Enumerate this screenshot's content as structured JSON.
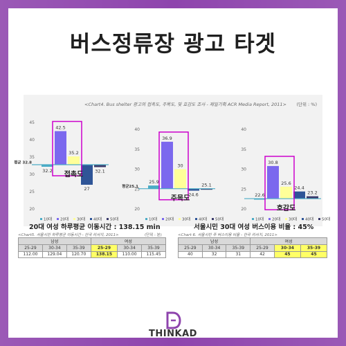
{
  "title": "버스정류장 광고 타겟",
  "chart_caption": "<Chart4. Bus shelter 광고의 접촉도, 주목도, 및 호감도 조사 - 제일기획 ACR Media Report, 2011>",
  "unit": "(단위 : %)",
  "chart_data": [
    {
      "type": "bar",
      "title": "접촉도",
      "categories": [
        "10대",
        "20대",
        "30대",
        "40대",
        "50대"
      ],
      "values": [
        32.2,
        42.5,
        35.2,
        27,
        32.1
      ],
      "ylim": [
        20,
        45
      ],
      "yticks": [
        20,
        25,
        30,
        35,
        40,
        45
      ],
      "baseline": 32.8,
      "baseline_label": "평균 32.8"
    },
    {
      "type": "bar",
      "title": "주목도",
      "categories": [
        "10대",
        "20대",
        "30대",
        "40대",
        "50대"
      ],
      "values": [
        25.9,
        36.9,
        30,
        24.6,
        25.1
      ],
      "ylim": [
        20,
        40
      ],
      "yticks": [
        20,
        25,
        30,
        35,
        40
      ],
      "baseline": 25.1,
      "baseline_label": "평균25.1"
    },
    {
      "type": "bar",
      "title": "호감도",
      "categories": [
        "10대",
        "20대",
        "30대",
        "40대",
        "50대"
      ],
      "values": [
        22.6,
        30.8,
        25.6,
        24.4,
        23.2
      ],
      "ylim": [
        20,
        40
      ],
      "yticks": [
        20,
        25,
        30,
        35,
        40
      ],
      "baseline": 22.6,
      "baseline_label": ""
    }
  ],
  "colors": {
    "c10": "#4bacc6",
    "c20": "#7b68ee",
    "c30": "#ffff99",
    "c40": "#2f5597",
    "c50": "#3b3b6b",
    "highlight": "#cc00cc"
  },
  "table1": {
    "heading": "20대 여성 하루평균 이동시간 : 138.15 min",
    "sub": "<Chart5. 서울시민 하루평균 이동시간 - 한국 리서치, 2011>",
    "unit": "(단위 : 분)",
    "group_male": "남성",
    "group_female": "여성",
    "ages": [
      "25-29",
      "30-34",
      "35-39",
      "25-29",
      "30-34",
      "35-39"
    ],
    "values": [
      "112.00",
      "129.04",
      "120.70",
      "138.15",
      "110.00",
      "115.45"
    ]
  },
  "table2": {
    "heading": "서울시민 30대 여성 버스이용 비율 : 45%",
    "sub": "<Chart 6. 서울시민 주 버스이용 비율 - 한국 리서치, 2011>",
    "group_male": "남성",
    "group_female": "여성",
    "ages": [
      "25-29",
      "30-34",
      "35-39",
      "25-29",
      "30-34",
      "35-39"
    ],
    "values": [
      "40",
      "32",
      "31",
      "42",
      "45",
      "45"
    ]
  },
  "logo": "THINKAD"
}
